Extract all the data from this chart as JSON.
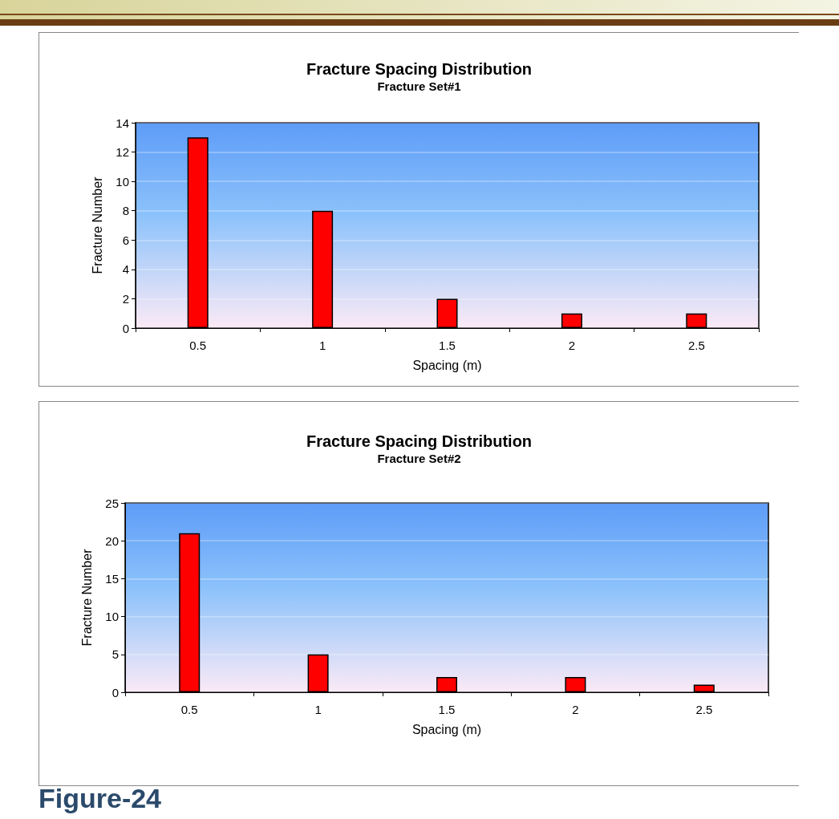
{
  "chart_data": [
    {
      "type": "bar",
      "title": "Fracture Spacing Distribution",
      "subtitle": "Fracture Set#1",
      "xlabel": "Spacing (m)",
      "ylabel": "Fracture Number",
      "categories": [
        "0.5",
        "1",
        "1.5",
        "2",
        "2.5"
      ],
      "series": [
        {
          "color": "#ff0000",
          "values": [
            13,
            8,
            2,
            1,
            1
          ]
        }
      ],
      "ylim": [
        0,
        14
      ],
      "yticks": [
        0,
        2,
        4,
        6,
        8,
        10,
        12,
        14
      ],
      "grid": "y"
    },
    {
      "type": "bar",
      "title": "Fracture Spacing Distribution",
      "subtitle": "Fracture Set#2",
      "xlabel": "Spacing (m)",
      "ylabel": "Fracture Number",
      "categories": [
        "0.5",
        "1",
        "1.5",
        "2",
        "2.5"
      ],
      "series": [
        {
          "color": "#ff0000",
          "values": [
            21,
            5,
            2,
            2,
            1
          ]
        }
      ],
      "ylim": [
        0,
        25
      ],
      "yticks": [
        0,
        5,
        10,
        15,
        20,
        25
      ],
      "grid": "y",
      "annotations": [
        "Figure-24"
      ]
    }
  ]
}
